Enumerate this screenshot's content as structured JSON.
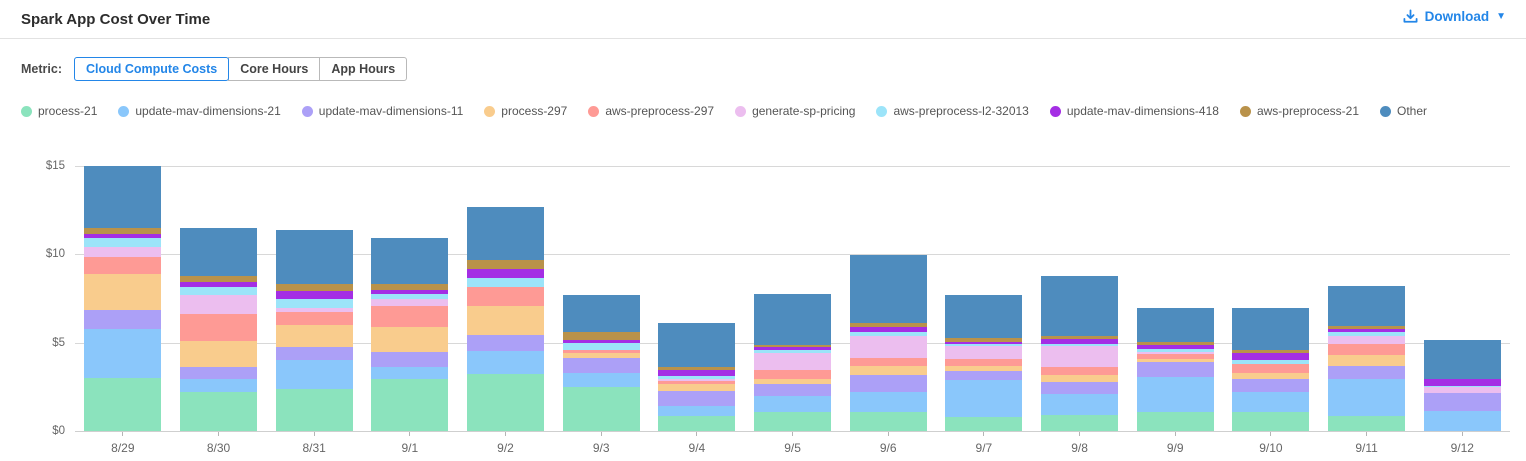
{
  "header": {
    "title": "Spark App Cost Over Time",
    "download_label": "Download"
  },
  "controls": {
    "metric_label": "Metric:",
    "buttons": [
      {
        "label": "Cloud Compute Costs",
        "selected": true
      },
      {
        "label": "Core Hours",
        "selected": false
      },
      {
        "label": "App Hours",
        "selected": false
      }
    ]
  },
  "colors": {
    "accent_blue": "#2386e8",
    "gridline": "#d8d8d8",
    "axis_text": "#666666"
  },
  "chart_data": {
    "type": "bar",
    "stacked": true,
    "title": "Spark App Cost Over Time",
    "xlabel": "",
    "ylabel": "Cloud Compute Costs ($)",
    "ylim": [
      0,
      15
    ],
    "yticks": [
      {
        "value": 0,
        "label": "$0"
      },
      {
        "value": 5,
        "label": "$5"
      },
      {
        "value": 10,
        "label": "$10"
      },
      {
        "value": 15,
        "label": "$15"
      }
    ],
    "grid": true,
    "legend_position": "top",
    "categories": [
      "8/29",
      "8/30",
      "8/31",
      "9/1",
      "9/2",
      "9/3",
      "9/4",
      "9/5",
      "9/6",
      "9/7",
      "9/8",
      "9/9",
      "9/10",
      "9/11",
      "9/12"
    ],
    "series": [
      {
        "name": "process-21",
        "color": "#8be3bd",
        "values": [
          3.0,
          2.2,
          2.35,
          2.95,
          3.2,
          2.5,
          0.85,
          1.1,
          1.1,
          0.8,
          0.9,
          1.05,
          1.1,
          0.85,
          0
        ]
      },
      {
        "name": "update-mav-dimensions-21",
        "color": "#8ac7fb",
        "values": [
          2.8,
          0.75,
          1.65,
          0.7,
          1.35,
          0.8,
          0.55,
          0.9,
          1.1,
          2.1,
          1.2,
          2.0,
          1.1,
          2.1,
          1.15
        ]
      },
      {
        "name": "update-mav-dimensions-11",
        "color": "#aca0f7",
        "values": [
          1.05,
          0.7,
          0.75,
          0.85,
          0.9,
          0.85,
          0.85,
          0.65,
          1.0,
          0.5,
          0.7,
          0.85,
          0.75,
          0.75,
          1.0
        ]
      },
      {
        "name": "process-297",
        "color": "#f9cc8d",
        "values": [
          2.05,
          1.45,
          1.25,
          1.4,
          1.6,
          0.25,
          0.4,
          0.3,
          0.5,
          0.3,
          0.4,
          0.15,
          0.35,
          0.6,
          0
        ]
      },
      {
        "name": "aws-preprocess-297",
        "color": "#fe9a95",
        "values": [
          0.95,
          1.5,
          0.75,
          1.2,
          1.1,
          0.2,
          0.2,
          0.5,
          0.45,
          0.4,
          0.45,
          0.3,
          0.5,
          0.65,
          0
        ]
      },
      {
        "name": "generate-sp-pricing",
        "color": "#ecbeef",
        "values": [
          0.55,
          1.1,
          0.2,
          0.4,
          0,
          0,
          0.1,
          0.95,
          1.25,
          0.7,
          1.15,
          0.1,
          0,
          0.45,
          0.35
        ]
      },
      {
        "name": "aws-preprocess-l2-32013",
        "color": "#9ce4f9",
        "values": [
          0.55,
          0.45,
          0.5,
          0.25,
          0.5,
          0.4,
          0.15,
          0.2,
          0.2,
          0.15,
          0.1,
          0.2,
          0.2,
          0.2,
          0.05
        ]
      },
      {
        "name": "update-mav-dimensions-418",
        "color": "#a42ee4",
        "values": [
          0.2,
          0.3,
          0.5,
          0.25,
          0.5,
          0.15,
          0.35,
          0.15,
          0.3,
          0.1,
          0.3,
          0.2,
          0.4,
          0.15,
          0.4
        ]
      },
      {
        "name": "aws-preprocess-21",
        "color": "#b9924a",
        "values": [
          0.35,
          0.35,
          0.35,
          0.35,
          0.55,
          0.45,
          0.15,
          0.15,
          0.2,
          0.2,
          0.2,
          0.2,
          0.2,
          0.2,
          0
        ]
      },
      {
        "name": "Other",
        "color": "#4e8cbe",
        "values": [
          3.5,
          2.7,
          3.1,
          2.6,
          3.0,
          2.1,
          2.5,
          2.85,
          3.85,
          2.45,
          3.4,
          1.9,
          2.35,
          2.25,
          2.2
        ]
      }
    ]
  }
}
